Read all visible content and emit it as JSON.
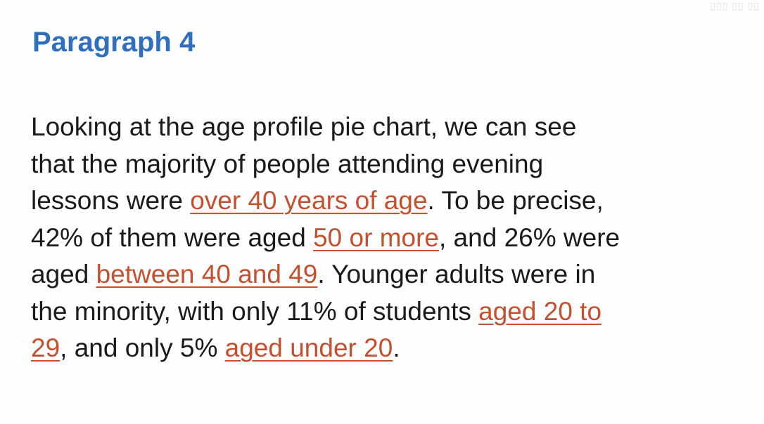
{
  "heading": "Paragraph 4",
  "paragraph": {
    "lines": [
      [
        {
          "text": "Looking at the age profile pie chart, we can see"
        }
      ],
      [
        {
          "text": "that the majority of people attending evening"
        }
      ],
      [
        {
          "text": "lessons were "
        },
        {
          "text": "over 40 years of age",
          "highlight": true
        },
        {
          "text": ". To be precise,"
        }
      ],
      [
        {
          "text": "42% of them were aged "
        },
        {
          "text": "50 or more",
          "highlight": true
        },
        {
          "text": ", and 26% were"
        }
      ],
      [
        {
          "text": "aged "
        },
        {
          "text": "between 40 and 49",
          "highlight": true
        },
        {
          "text": ". Younger adults were in"
        }
      ],
      [
        {
          "text": "the minority, with only 11% of students "
        },
        {
          "text": "aged 20 to",
          "highlight": true
        }
      ],
      [
        {
          "text": "29",
          "highlight": true
        },
        {
          "text": ", and only 5% "
        },
        {
          "text": "aged under 20",
          "highlight": true
        },
        {
          "text": "."
        }
      ]
    ]
  },
  "colors": {
    "heading": "#2f6fbd",
    "body_text": "#1a1a1a",
    "highlight": "#c4502d",
    "background": "#fefefe"
  }
}
